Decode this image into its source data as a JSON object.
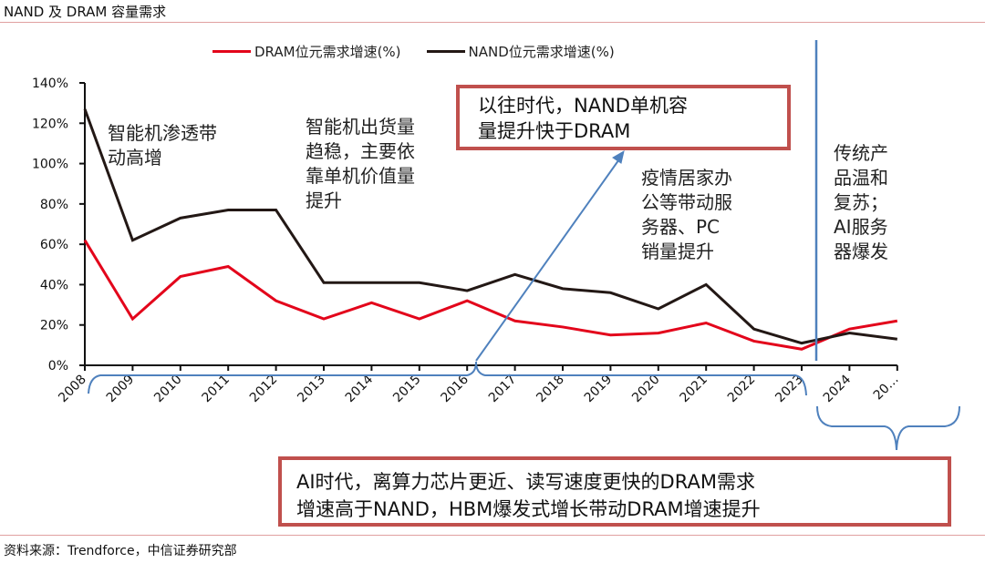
{
  "header": {
    "title": "NAND 及 DRAM 容量需求"
  },
  "footer": {
    "source": "资料来源：Trendforce，中信证券研究部"
  },
  "legend": [
    {
      "label": "DRAM位元需求增速(%)",
      "color": "#e3051b"
    },
    {
      "label": "NAND位元需求增速(%)",
      "color": "#231815"
    }
  ],
  "annotations": {
    "smartphone_penetration": "智能机渗透带\n动高增",
    "smartphone_stable": "智能机出货量\n趋稳，主要依\n靠单机价值量\n提升",
    "pandemic": "疫情居家办\n公等带动服\n务器、PC\n销量提升",
    "ai_server": "传统产\n品温和\n复苏；\nAI服务\n器爆发",
    "box_past": "以往时代，NAND单机容\n量提升快于DRAM",
    "box_ai": "AI时代，离算力芯片更近、读写速度更快的DRAM需求\n增速高于NAND，HBM爆发式增长带动DRAM增速提升"
  },
  "colors": {
    "dram": "#e3051b",
    "nand": "#231815",
    "accent_blue": "#4f81bd",
    "box_border": "#c0504d"
  },
  "chart_data": {
    "type": "line",
    "title": "NAND 及 DRAM 容量需求",
    "xlabel": "",
    "ylabel": "",
    "categories": [
      "2008",
      "2009",
      "2010",
      "2011",
      "2012",
      "2013",
      "2014",
      "2015",
      "2016",
      "2017",
      "2018",
      "2019",
      "2020",
      "2021",
      "2022",
      "2023",
      "2024",
      "20…"
    ],
    "series": [
      {
        "name": "DRAM位元需求增速(%)",
        "color": "#e3051b",
        "values": [
          62,
          23,
          44,
          49,
          32,
          23,
          31,
          23,
          32,
          22,
          19,
          15,
          16,
          21,
          12,
          8,
          18,
          22
        ]
      },
      {
        "name": "NAND位元需求增速(%)",
        "color": "#231815",
        "values": [
          127,
          62,
          73,
          77,
          77,
          41,
          41,
          41,
          37,
          45,
          38,
          36,
          28,
          40,
          18,
          11,
          16,
          13
        ]
      }
    ],
    "yticks": [
      "0%",
      "20%",
      "40%",
      "60%",
      "80%",
      "100%",
      "120%",
      "140%"
    ],
    "ylim": [
      0,
      140
    ],
    "grid": false,
    "legend_position": "top",
    "divider_after": "2023"
  }
}
